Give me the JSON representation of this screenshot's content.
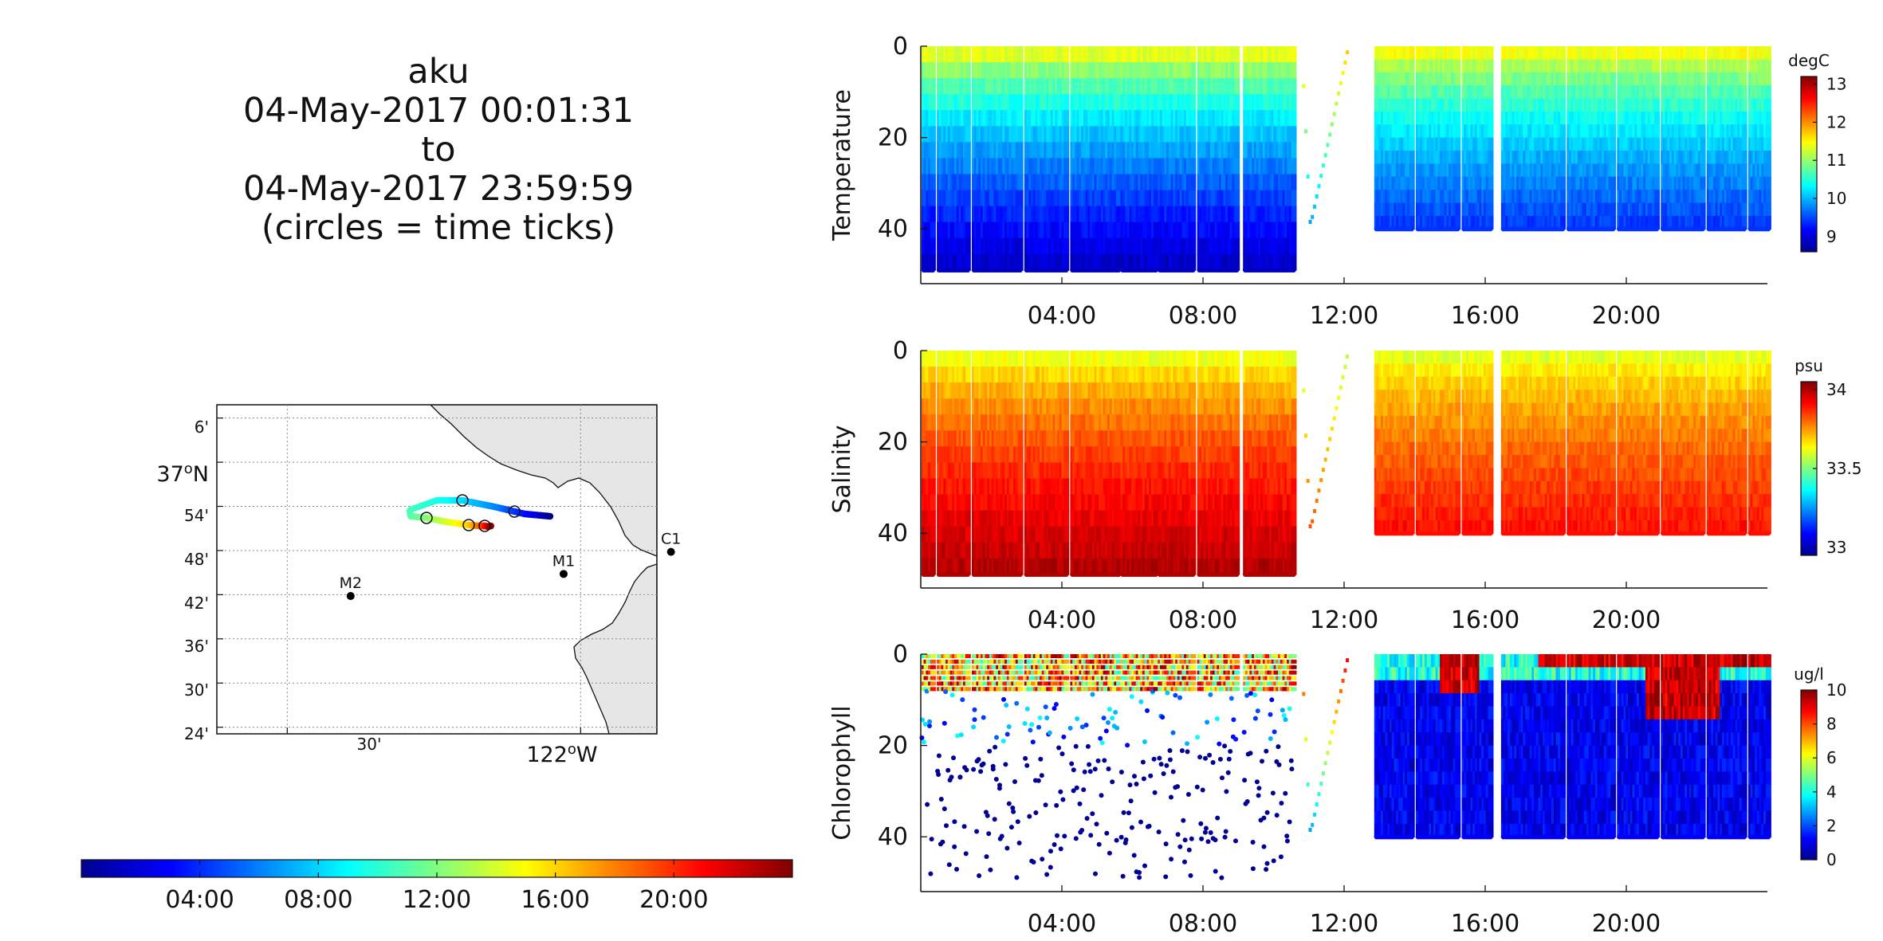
{
  "title": {
    "lines": [
      "aku",
      "04-May-2017 00:01:31",
      "to",
      "04-May-2017 23:59:59",
      "(circles = time ticks)"
    ]
  },
  "map": {
    "lat_labels": [
      "6'",
      "37°N",
      "54'",
      "48'",
      "42'",
      "36'",
      "30'",
      "24'"
    ],
    "lon_labels": [
      "30'",
      "122°W"
    ],
    "stations": [
      {
        "name": "C1",
        "lat": 36.797,
        "lon": -121.846
      },
      {
        "name": "M1",
        "lat": 36.747,
        "lon": -122.029
      },
      {
        "name": "M2",
        "lat": 36.697,
        "lon": -122.392
      }
    ],
    "land_color": "#e6e6e6"
  },
  "time_colorbar": {
    "tick_labels": [
      "04:00",
      "08:00",
      "12:00",
      "16:00",
      "20:00"
    ],
    "range_hours": [
      0,
      24
    ],
    "colormap": "jet"
  },
  "chart_data": [
    {
      "type": "scatter",
      "panel": "temperature",
      "ylabel": "Temperature",
      "x_range_hours": [
        0,
        24
      ],
      "ylim": [
        52,
        0
      ],
      "yticks": [
        0,
        20,
        40
      ],
      "xtick_labels": [
        "04:00",
        "08:00",
        "12:00",
        "16:00",
        "20:00"
      ],
      "colorbar": {
        "unit": "degC",
        "range": [
          8.6,
          13.2
        ],
        "ticks": [
          9,
          10,
          11,
          12,
          13
        ],
        "tick_labels": [
          "9",
          "10",
          "11",
          "12",
          "13"
        ]
      },
      "surface_value": 11.8,
      "deep_value_day": 8.9,
      "deep_value_afternoon": 9.4
    },
    {
      "type": "scatter",
      "panel": "salinity",
      "ylabel": "Salinity",
      "x_range_hours": [
        0,
        24
      ],
      "ylim": [
        52,
        0
      ],
      "yticks": [
        0,
        20,
        40
      ],
      "xtick_labels": [
        "04:00",
        "08:00",
        "12:00",
        "16:00",
        "20:00"
      ],
      "colorbar": {
        "unit": "psu",
        "range": [
          32.95,
          34.05
        ],
        "ticks": [
          33,
          33.5,
          34
        ],
        "tick_labels": [
          "33",
          "33.5",
          "34"
        ]
      },
      "surface_value": 33.55,
      "deep_value_day": 34.0,
      "deep_value_afternoon": 33.9
    },
    {
      "type": "scatter",
      "panel": "chlorophyll",
      "ylabel": "Chlorophyll",
      "x_range_hours": [
        0,
        24
      ],
      "ylim": [
        52,
        0
      ],
      "yticks": [
        0,
        20,
        40
      ],
      "xtick_labels": [
        "04:00",
        "08:00",
        "12:00",
        "16:00",
        "20:00"
      ],
      "colorbar": {
        "unit": "ug/l",
        "range": [
          0,
          10
        ],
        "ticks": [
          0,
          2,
          4,
          6,
          8,
          10
        ],
        "tick_labels": [
          "0",
          "2",
          "4",
          "6",
          "8",
          "10"
        ]
      },
      "surface_value": 9.0,
      "deep_value_day": 0.3,
      "deep_value_afternoon": 1.2
    }
  ]
}
